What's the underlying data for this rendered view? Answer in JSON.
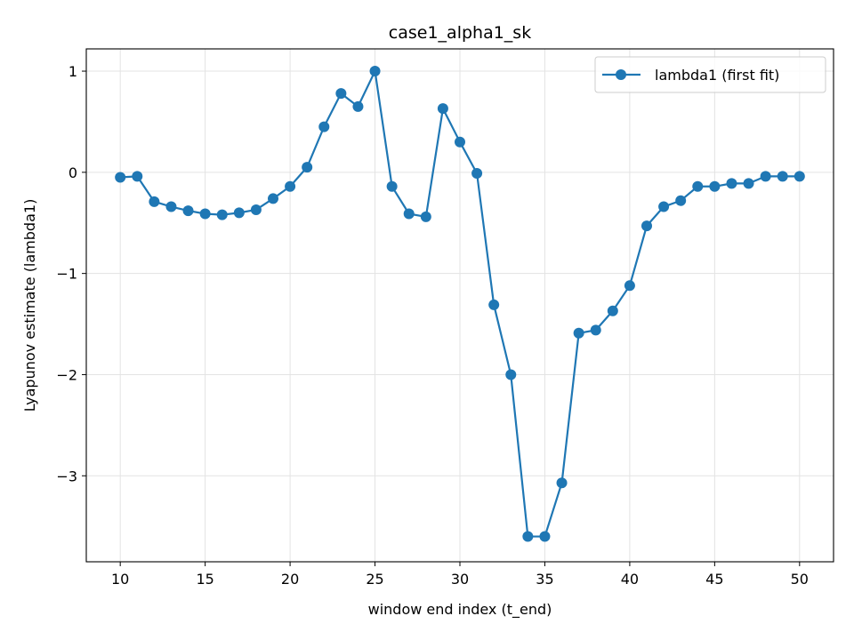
{
  "chart_data": {
    "type": "line",
    "title": "case1_alpha1_sk",
    "xlabel": "window end index (t_end)",
    "ylabel": "Lyapunov estimate (lambda1)",
    "xlim": [
      8,
      52
    ],
    "ylim": [
      -3.85,
      1.22
    ],
    "xticks": [
      10,
      15,
      20,
      25,
      30,
      35,
      40,
      45,
      50
    ],
    "yticks": [
      1,
      0,
      -1,
      -2,
      -3
    ],
    "ytick_labels": [
      "1",
      "0",
      "−1",
      "−2",
      "−3"
    ],
    "grid": true,
    "legend_position": "top-right",
    "series": [
      {
        "name": "lambda1 (first fit)",
        "color": "#1f77b4",
        "marker": "circle",
        "x": [
          10,
          11,
          12,
          13,
          14,
          15,
          16,
          17,
          18,
          19,
          20,
          21,
          22,
          23,
          24,
          25,
          26,
          27,
          28,
          29,
          30,
          31,
          32,
          33,
          34,
          35,
          36,
          37,
          38,
          39,
          40,
          41,
          42,
          43,
          44,
          45,
          46,
          47,
          48,
          49,
          50
        ],
        "y": [
          -0.05,
          -0.04,
          -0.29,
          -0.34,
          -0.38,
          -0.41,
          -0.42,
          -0.4,
          -0.37,
          -0.26,
          -0.14,
          0.05,
          0.45,
          0.78,
          0.65,
          1.0,
          -0.14,
          -0.41,
          -0.44,
          0.63,
          0.3,
          -0.01,
          -1.31,
          -2.0,
          -3.6,
          -3.6,
          -3.07,
          -1.59,
          -1.56,
          -1.37,
          -1.12,
          -0.53,
          -0.34,
          -0.28,
          -0.14,
          -0.14,
          -0.11,
          -0.11,
          -0.04,
          -0.04,
          -0.04
        ]
      }
    ]
  }
}
